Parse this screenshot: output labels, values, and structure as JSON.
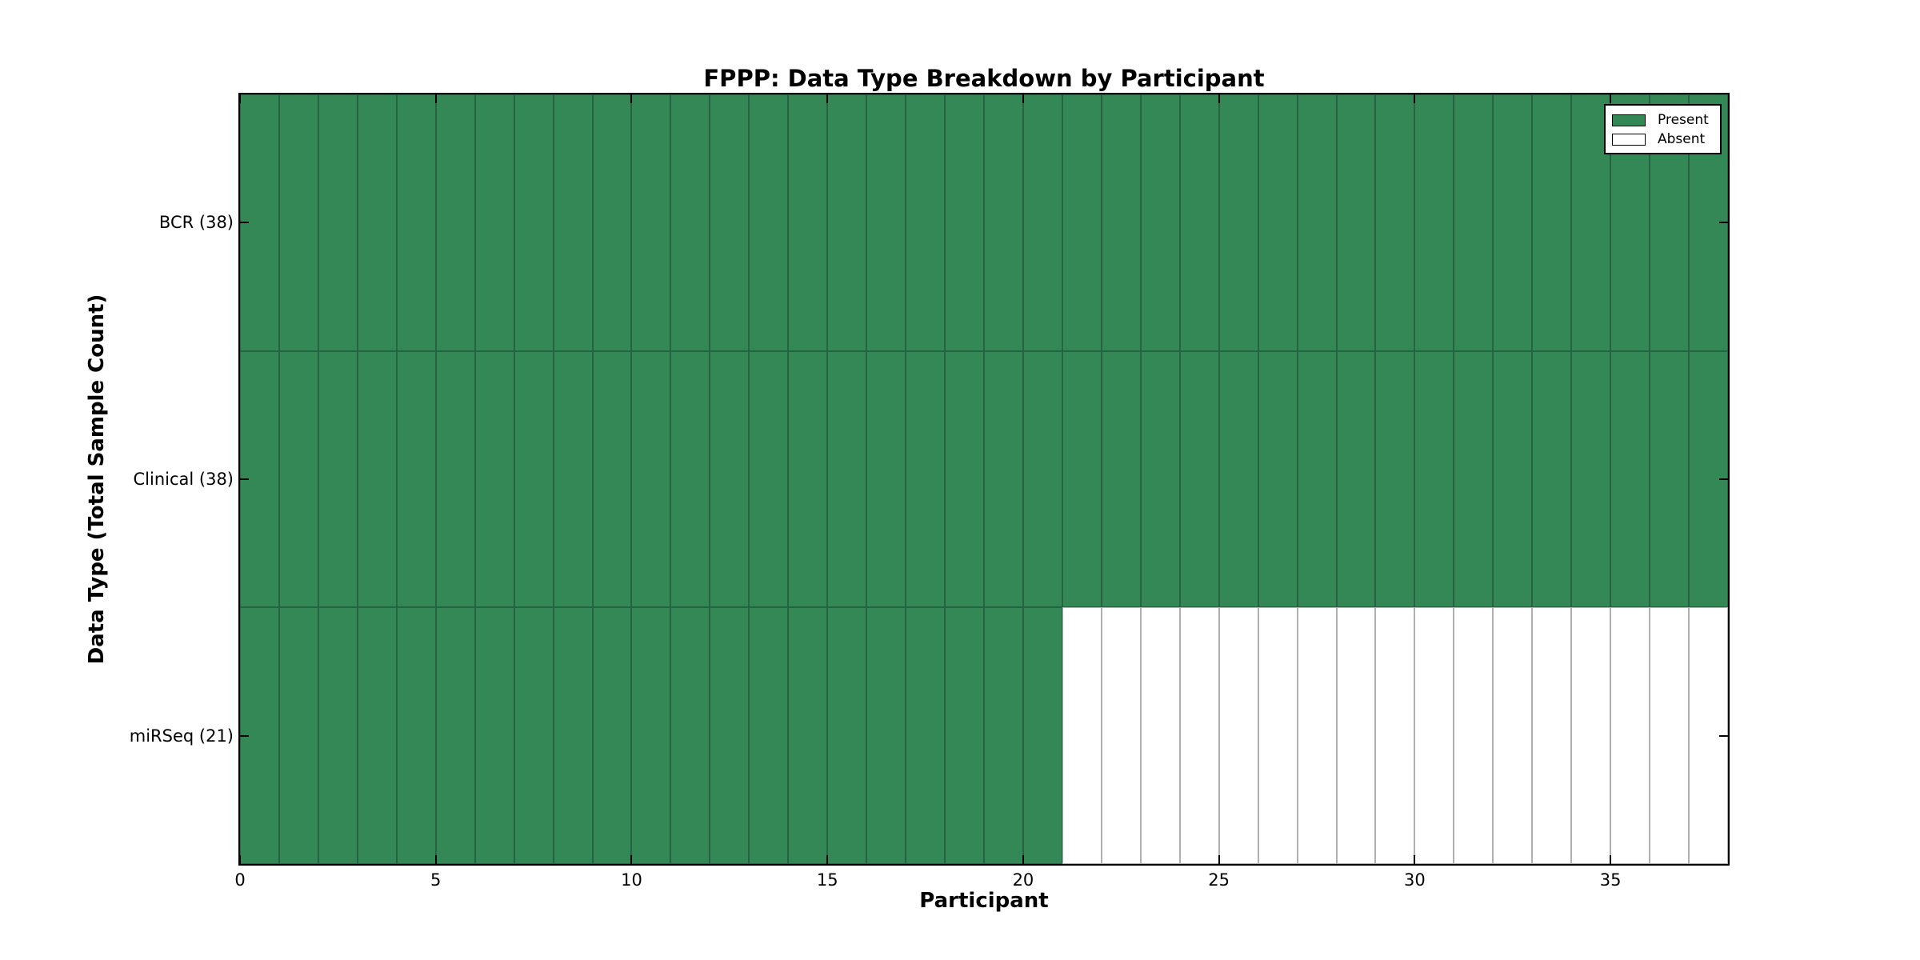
{
  "chart_data": {
    "type": "heatmap",
    "title": "FPPP: Data Type Breakdown by Participant",
    "xlabel": "Participant",
    "ylabel": "Data Type (Total Sample Count)",
    "xlim": [
      0,
      38
    ],
    "x_ticks": [
      0,
      5,
      10,
      15,
      20,
      25,
      30,
      35
    ],
    "n_participants": 38,
    "rows": [
      {
        "label": "BCR (38)",
        "data_type": "BCR",
        "total_sample_count": 38,
        "present_participants": 38,
        "absent_participants": 0
      },
      {
        "label": "Clinical (38)",
        "data_type": "Clinical",
        "total_sample_count": 38,
        "present_participants": 38,
        "absent_participants": 0
      },
      {
        "label": "miRSeq (21)",
        "data_type": "miRSeq",
        "total_sample_count": 21,
        "present_participants": 21,
        "absent_participants": 17
      }
    ],
    "legend": [
      {
        "label": "Present",
        "color": "#338856"
      },
      {
        "label": "Absent",
        "color": "#ffffff"
      }
    ],
    "colors": {
      "present_fill": "#338856",
      "present_edge": "#276242",
      "absent_fill": "#ffffff",
      "absent_edge": "#b0b0b0",
      "spine": "#000000"
    },
    "layout_hints": {
      "legend_position": "upper right",
      "grid": "cell borders only",
      "tick_direction": "in"
    }
  }
}
